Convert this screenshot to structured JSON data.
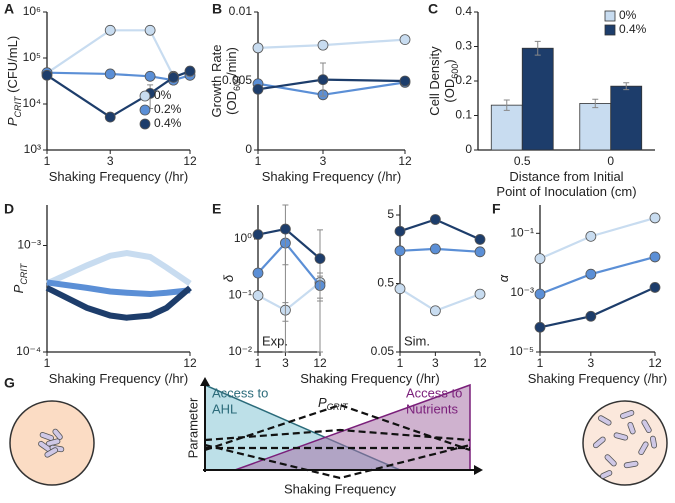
{
  "panel_labels": [
    "A",
    "B",
    "C",
    "D",
    "E",
    "F",
    "G"
  ],
  "chart_data": [
    {
      "type": "line",
      "xlog": true,
      "ylog": true,
      "markers": true,
      "x": [
        1,
        3,
        6,
        9,
        12
      ],
      "xlim": [
        1,
        12
      ],
      "xticks": [
        1,
        3,
        12
      ],
      "ylim": [
        1000,
        1000000
      ],
      "yticks": [
        {
          "value": 1000,
          "label": "10³"
        },
        {
          "value": 10000,
          "label": "10⁴"
        },
        {
          "value": 100000,
          "label": "10⁵"
        },
        {
          "value": 1000000,
          "label": "10⁶"
        }
      ],
      "x_label": [
        [
          {
            "text": "Shaking Frequency (/hr)"
          }
        ]
      ],
      "y_label": [
        [
          {
            "text": "P",
            "italic": true
          },
          {
            "text": "CRIT",
            "sub": true,
            "italic": true
          },
          {
            "text": " (CFU/mL)"
          }
        ]
      ],
      "legend": "lower right",
      "series": [
        {
          "name": "0%",
          "color": "#c8dcf0",
          "values": [
            47000,
            400000,
            400000,
            40000,
            50000
          ],
          "errors": [
            null,
            null,
            80000,
            null,
            null
          ]
        },
        {
          "name": "0.2%",
          "color": "#5b8fd6",
          "values": [
            48000,
            45000,
            40000,
            33000,
            42000
          ],
          "errors": [
            null,
            8000,
            null,
            null,
            null
          ]
        },
        {
          "name": "0.4%",
          "color": "#1d3d6b",
          "values": [
            42000,
            5200,
            17000,
            38000,
            52000
          ],
          "errors": [
            null,
            null,
            9000,
            null,
            12000
          ]
        }
      ]
    },
    {
      "type": "line",
      "xlog": true,
      "ylog": false,
      "markers": true,
      "x": [
        1,
        3,
        12
      ],
      "xlim": [
        1,
        12
      ],
      "xticks": [
        1,
        3,
        12
      ],
      "ylim": [
        0,
        0.01
      ],
      "yticks": [
        0,
        0.005,
        0.01
      ],
      "x_label": [
        [
          {
            "text": "Shaking Frequency (/hr)"
          }
        ]
      ],
      "y_label": [
        [
          {
            "text": "Growth Rate"
          }
        ],
        [
          {
            "text": "(OD"
          },
          {
            "text": "600",
            "sub": true
          },
          {
            "text": "/min)"
          }
        ]
      ],
      "series": [
        {
          "color": "#c8dcf0",
          "values": [
            0.0074,
            0.0076,
            0.008
          ],
          "errors": [
            null,
            null,
            null
          ]
        },
        {
          "color": "#5b8fd6",
          "values": [
            0.0048,
            0.004,
            0.0049
          ],
          "errors": [
            null,
            null,
            null
          ]
        },
        {
          "color": "#1d3d6b",
          "values": [
            0.0044,
            0.0051,
            0.005
          ],
          "errors": [
            null,
            0.0012,
            null
          ]
        }
      ]
    },
    {
      "type": "bar",
      "categories": [
        "0.5",
        "0"
      ],
      "ylim": [
        0,
        0.4
      ],
      "yticks": [
        0,
        0.1,
        0.2,
        0.3,
        0.4
      ],
      "x_label": [
        [
          {
            "text": "Distance from Initial"
          }
        ],
        [
          {
            "text": "Point of Inoculation (cm)"
          }
        ]
      ],
      "y_label": [
        [
          {
            "text": "Cell Density"
          }
        ],
        [
          {
            "text": "(OD"
          },
          {
            "text": "600",
            "sub": true
          },
          {
            "text": ")"
          }
        ]
      ],
      "legend": "upper right",
      "series": [
        {
          "name": "0%",
          "color": "#c8dcf0",
          "values": [
            0.13,
            0.135
          ],
          "errors": [
            0.015,
            0.012
          ]
        },
        {
          "name": "0.4%",
          "color": "#1d3d6b",
          "values": [
            0.295,
            0.185
          ],
          "errors": [
            0.02,
            0.01
          ]
        }
      ]
    },
    {
      "type": "line",
      "xlog": true,
      "ylog": true,
      "markers": false,
      "width": 6,
      "x": [
        1,
        2,
        3,
        4,
        6,
        8,
        12
      ],
      "xlim": [
        1,
        12
      ],
      "xticks": [
        1,
        12
      ],
      "ylim": [
        0.0001,
        0.0024
      ],
      "yticks": [
        {
          "value": 0.0001,
          "label": "10⁻⁴"
        },
        {
          "value": 0.001,
          "label": "10⁻³"
        }
      ],
      "x_label": [
        [
          {
            "text": "Shaking Frequency (/hr)"
          }
        ]
      ],
      "y_label": [
        [
          {
            "text": "P",
            "italic": true
          },
          {
            "text": "CRIT",
            "sub": true,
            "italic": true
          }
        ]
      ],
      "series": [
        {
          "color": "#c8dcf0",
          "values": [
            0.00044,
            0.00065,
            0.0008,
            0.00085,
            0.00078,
            0.00062,
            0.00044
          ]
        },
        {
          "color": "#5b8fd6",
          "values": [
            0.00045,
            0.0004,
            0.00037,
            0.00036,
            0.00035,
            0.00036,
            0.00038
          ]
        },
        {
          "color": "#1d3d6b",
          "values": [
            0.0004,
            0.00026,
            0.00022,
            0.00021,
            0.00022,
            0.00026,
            0.0004
          ]
        }
      ]
    },
    {
      "type": "line",
      "xlog": true,
      "ylog": true,
      "markers": true,
      "x": [
        1,
        3,
        12
      ],
      "xlim": [
        1,
        12
      ],
      "xticks": [
        1,
        3,
        12
      ],
      "ylim": [
        0.01,
        4
      ],
      "yticks": [
        {
          "value": 0.01,
          "label": "10⁻²"
        },
        {
          "value": 0.1,
          "label": "10⁻¹"
        },
        {
          "value": 1,
          "label": "10⁰"
        }
      ],
      "x_label": [
        [
          {
            "text": "Shaking Frequency (/hr)"
          }
        ]
      ],
      "y_label": [
        [
          {
            "text": "δ",
            "italic": true
          }
        ]
      ],
      "annotation": "Exp.",
      "series": [
        {
          "color": "#c8dcf0",
          "values": [
            0.1,
            0.055,
            0.17
          ],
          "errors": [
            null,
            0.02,
            0.08
          ]
        },
        {
          "color": "#5b8fd6",
          "values": [
            0.25,
            0.85,
            0.15
          ],
          "errors": [
            null,
            0.5,
            0.07
          ]
        },
        {
          "color": "#1d3d6b",
          "values": [
            1.2,
            1.5,
            0.45
          ],
          "errors": [
            null,
            2.5,
            1
          ]
        }
      ]
    },
    {
      "type": "line",
      "xlog": true,
      "ylog": true,
      "markers": true,
      "x": [
        1,
        3,
        12
      ],
      "xlim": [
        1,
        12
      ],
      "xticks": [
        1,
        3,
        12
      ],
      "ylim": [
        0.05,
        7
      ],
      "yticks": [
        0.05,
        0.5,
        5
      ],
      "annotation": "Sim.",
      "series": [
        {
          "color": "#c8dcf0",
          "values": [
            0.42,
            0.2,
            0.35
          ]
        },
        {
          "color": "#5b8fd6",
          "values": [
            1.5,
            1.6,
            1.45
          ]
        },
        {
          "color": "#1d3d6b",
          "values": [
            2.9,
            4.3,
            2.2
          ]
        }
      ]
    },
    {
      "type": "line",
      "xlog": true,
      "ylog": true,
      "markers": true,
      "x": [
        1,
        3,
        12
      ],
      "xlim": [
        1,
        12
      ],
      "xticks": [
        1,
        3,
        12
      ],
      "ylim": [
        1e-05,
        0.9
      ],
      "yticks": [
        {
          "value": 1e-05,
          "label": "10⁻⁵"
        },
        {
          "value": 0.001,
          "label": "10⁻³"
        },
        {
          "value": 0.1,
          "label": "10⁻¹"
        }
      ],
      "x_label": [
        [
          {
            "text": "Shaking Frequency (/hr)"
          }
        ]
      ],
      "y_label": [
        [
          {
            "text": "α",
            "italic": true
          }
        ]
      ],
      "series": [
        {
          "color": "#c8dcf0",
          "values": [
            0.014,
            0.079,
            0.33
          ]
        },
        {
          "color": "#5b8fd6",
          "values": [
            0.0009,
            0.0042,
            0.016
          ]
        },
        {
          "color": "#1d3d6b",
          "values": [
            6.8e-05,
            0.00016,
            0.0015
          ]
        }
      ]
    }
  ],
  "diagram": {
    "ahl_label": [
      "Access to",
      "AHL"
    ],
    "pcrit": "P",
    "pcrit_sub": "CRIT",
    "nutrient_label": [
      "Access to",
      "Nutrients"
    ],
    "y_label": "Parameter",
    "x_label": "Shaking Frequency"
  }
}
